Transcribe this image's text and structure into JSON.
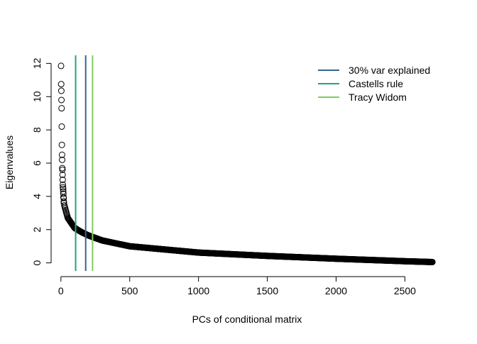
{
  "chart_data": {
    "type": "scatter",
    "title": "",
    "xlabel": "PCs of conditional matrix",
    "ylabel": "Eigenvalues",
    "xlim": [
      -30,
      2730
    ],
    "ylim": [
      -0.4,
      12.4
    ],
    "x_ticks": [
      0,
      500,
      1000,
      1500,
      2000,
      2500
    ],
    "y_ticks": [
      0,
      2,
      4,
      6,
      8,
      10,
      12
    ],
    "grid": false,
    "legend_position": "top-right",
    "n_points": 2700,
    "leading_eigenvalues": [
      11.85,
      10.75,
      10.35,
      9.8,
      9.3,
      8.2,
      7.1,
      6.5,
      6.2,
      5.7,
      5.6,
      5.3,
      5.0,
      4.7,
      4.55,
      4.45,
      4.3,
      4.15,
      3.95,
      3.9,
      3.7,
      3.6
    ],
    "curve_anchors": [
      {
        "x": 22,
        "y": 3.55
      },
      {
        "x": 50,
        "y": 2.7
      },
      {
        "x": 100,
        "y": 2.1
      },
      {
        "x": 150,
        "y": 1.85
      },
      {
        "x": 200,
        "y": 1.65
      },
      {
        "x": 300,
        "y": 1.35
      },
      {
        "x": 500,
        "y": 1.0
      },
      {
        "x": 1000,
        "y": 0.62
      },
      {
        "x": 1500,
        "y": 0.42
      },
      {
        "x": 2000,
        "y": 0.25
      },
      {
        "x": 2500,
        "y": 0.1
      },
      {
        "x": 2700,
        "y": 0.05
      }
    ],
    "vlines": [
      {
        "name": "30% var explained",
        "x": 180,
        "color": "#33668c"
      },
      {
        "name": "Castells rule",
        "x": 107,
        "color": "#20a47a"
      },
      {
        "name": "Tracy Widom",
        "x": 230,
        "color": "#7cce5e"
      }
    ],
    "legend": [
      {
        "label": "30% var explained",
        "color": "#33668c"
      },
      {
        "label": "Castells rule",
        "color": "#20a47a"
      },
      {
        "label": "Tracy Widom",
        "color": "#7cce5e"
      }
    ]
  }
}
